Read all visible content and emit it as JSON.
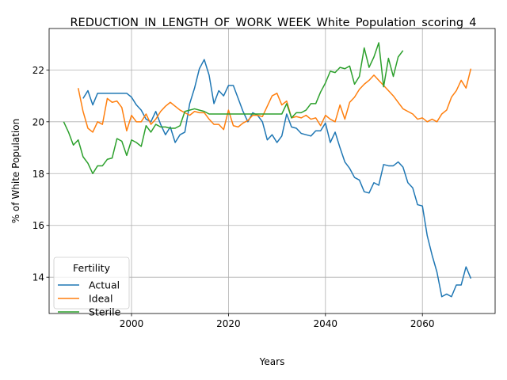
{
  "chart_data": {
    "type": "line",
    "title": "REDUCTION_IN_LENGTH_OF_WORK_WEEK_White_Population_scoring_4",
    "xlabel": "Years",
    "ylabel": "% of White Population",
    "xlim": [
      1983,
      2075
    ],
    "ylim": [
      12.6,
      23.6
    ],
    "xticks": [
      2000,
      2020,
      2040,
      2060
    ],
    "yticks": [
      14,
      16,
      18,
      20,
      22
    ],
    "grid": true,
    "legend": {
      "title": "Fertility",
      "position": "lower-left"
    },
    "series": [
      {
        "name": "Actual",
        "color": "#1f77b4",
        "x": [
          1990,
          1991,
          1992,
          1993,
          1994,
          1995,
          1996,
          1997,
          1998,
          1999,
          2000,
          2001,
          2002,
          2003,
          2004,
          2005,
          2006,
          2007,
          2008,
          2009,
          2010,
          2011,
          2012,
          2013,
          2014,
          2015,
          2016,
          2017,
          2018,
          2019,
          2020,
          2021,
          2022,
          2023,
          2024,
          2025,
          2026,
          2027,
          2028,
          2029,
          2030,
          2031,
          2032,
          2033,
          2034,
          2035,
          2036,
          2037,
          2038,
          2039,
          2040,
          2041,
          2042,
          2043,
          2044,
          2045,
          2046,
          2047,
          2048,
          2049,
          2050,
          2051,
          2052,
          2053,
          2054,
          2055,
          2056,
          2057,
          2058,
          2059,
          2060,
          2061,
          2062,
          2063,
          2064,
          2065,
          2066,
          2067,
          2068,
          2069,
          2070
        ],
        "y": [
          20.9,
          21.2,
          20.65,
          21.1,
          21.1,
          21.1,
          21.1,
          21.1,
          21.1,
          21.1,
          20.95,
          20.65,
          20.45,
          20.1,
          20.0,
          20.4,
          19.9,
          19.5,
          19.8,
          19.2,
          19.5,
          19.6,
          20.7,
          21.3,
          22.05,
          22.4,
          21.8,
          20.7,
          21.2,
          21.0,
          21.4,
          21.4,
          20.9,
          20.4,
          20.0,
          20.35,
          20.25,
          20.0,
          19.3,
          19.5,
          19.2,
          19.45,
          20.3,
          19.8,
          19.75,
          19.55,
          19.5,
          19.45,
          19.65,
          19.65,
          19.95,
          19.2,
          19.6,
          19.0,
          18.45,
          18.2,
          17.85,
          17.75,
          17.3,
          17.25,
          17.65,
          17.55,
          18.35,
          18.3,
          18.3,
          18.45,
          18.25,
          17.65,
          17.45,
          16.8,
          16.75,
          15.6,
          14.85,
          14.2,
          13.25,
          13.35,
          13.25,
          13.7,
          13.7,
          14.4,
          13.95
        ]
      },
      {
        "name": "Ideal",
        "color": "#ff7f0e",
        "x": [
          1989,
          1990,
          1991,
          1992,
          1993,
          1994,
          1995,
          1996,
          1997,
          1998,
          1999,
          2000,
          2001,
          2002,
          2003,
          2004,
          2005,
          2006,
          2007,
          2008,
          2009,
          2010,
          2011,
          2012,
          2013,
          2014,
          2015,
          2016,
          2017,
          2018,
          2019,
          2020,
          2021,
          2022,
          2023,
          2024,
          2025,
          2026,
          2027,
          2028,
          2029,
          2030,
          2031,
          2032,
          2033,
          2034,
          2035,
          2036,
          2037,
          2038,
          2039,
          2040,
          2041,
          2042,
          2043,
          2044,
          2045,
          2046,
          2047,
          2048,
          2049,
          2050,
          2051,
          2052,
          2053,
          2054,
          2055,
          2056,
          2057,
          2058,
          2059,
          2060,
          2061,
          2062,
          2063,
          2064,
          2065,
          2066,
          2067,
          2068,
          2069,
          2070
        ],
        "y": [
          21.3,
          20.4,
          19.75,
          19.6,
          20.0,
          19.9,
          20.9,
          20.75,
          20.8,
          20.55,
          19.65,
          20.25,
          20.0,
          20.0,
          20.3,
          19.9,
          20.1,
          20.4,
          20.6,
          20.75,
          20.6,
          20.45,
          20.35,
          20.25,
          20.4,
          20.35,
          20.35,
          20.1,
          19.9,
          19.9,
          19.7,
          20.45,
          19.85,
          19.8,
          19.95,
          20.05,
          20.25,
          20.25,
          20.2,
          20.6,
          21.0,
          21.1,
          20.65,
          20.8,
          20.15,
          20.2,
          20.15,
          20.25,
          20.1,
          20.15,
          19.85,
          20.25,
          20.1,
          20.0,
          20.65,
          20.1,
          20.75,
          20.95,
          21.25,
          21.45,
          21.6,
          21.8,
          21.6,
          21.4,
          21.2,
          21.0,
          20.75,
          20.5,
          20.4,
          20.3,
          20.1,
          20.15,
          20.0,
          20.1,
          20.0,
          20.3,
          20.45,
          20.95,
          21.2,
          21.6,
          21.3,
          22.05
        ]
      },
      {
        "name": "Sterile",
        "color": "#2ca02c",
        "x": [
          1986,
          1987,
          1988,
          1989,
          1990,
          1991,
          1992,
          1993,
          1994,
          1995,
          1996,
          1997,
          1998,
          1999,
          2000,
          2001,
          2002,
          2003,
          2004,
          2005,
          2006,
          2007,
          2008,
          2009,
          2010,
          2011,
          2012,
          2013,
          2014,
          2015,
          2016,
          2017,
          2018,
          2019,
          2020,
          2021,
          2022,
          2023,
          2024,
          2025,
          2026,
          2027,
          2028,
          2029,
          2030,
          2031,
          2032,
          2033,
          2034,
          2035,
          2036,
          2037,
          2038,
          2039,
          2040,
          2041,
          2042,
          2043,
          2044,
          2045,
          2046,
          2047,
          2048,
          2049,
          2050,
          2051,
          2052,
          2053,
          2054,
          2055,
          2056
        ],
        "y": [
          20.0,
          19.6,
          19.1,
          19.3,
          18.65,
          18.4,
          18.0,
          18.3,
          18.3,
          18.55,
          18.6,
          19.35,
          19.25,
          18.7,
          19.3,
          19.2,
          19.05,
          19.85,
          19.6,
          19.9,
          19.8,
          19.8,
          19.75,
          19.75,
          19.85,
          20.4,
          20.45,
          20.5,
          20.45,
          20.4,
          20.3,
          20.3,
          20.3,
          20.3,
          20.3,
          20.3,
          20.3,
          20.3,
          20.3,
          20.3,
          20.3,
          20.3,
          20.3,
          20.3,
          20.3,
          20.3,
          20.7,
          20.15,
          20.35,
          20.35,
          20.45,
          20.7,
          20.7,
          21.15,
          21.5,
          21.95,
          21.9,
          22.1,
          22.05,
          22.15,
          21.45,
          21.75,
          22.85,
          22.1,
          22.5,
          23.05,
          21.35,
          22.45,
          21.75,
          22.5,
          22.75
        ]
      }
    ]
  }
}
